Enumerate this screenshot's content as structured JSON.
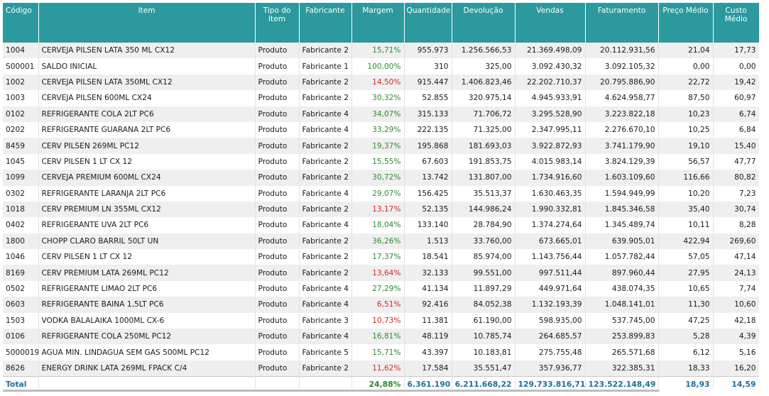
{
  "columns": [
    "Código",
    "Item",
    "Tipo do Item",
    "Fabricante",
    "Margem",
    "Quantidade",
    "Devolução",
    "Vendas",
    "Faturamento",
    "Preço Médio",
    "Custo Médio"
  ],
  "rows": [
    [
      "1004",
      "CERVEJA PILSEN LATA 350 ML CX12",
      "Produto",
      "Fabricante 2",
      "15,71%",
      "955.973",
      "1.256.566,53",
      "21.369.498,09",
      "20.112.931,56",
      "21,04",
      "17,73"
    ],
    [
      "S00001",
      "SALDO INICIAL",
      "Produto",
      "Fabricante 1",
      "100,00%",
      "310",
      "325,00",
      "3.092.430,32",
      "3.092.105,32",
      "0,00",
      "0,00"
    ],
    [
      "1002",
      "CERVEJA PILSEN LATA 350ML CX12",
      "Produto",
      "Fabricante 2",
      "14,50%",
      "915.447",
      "1.406.823,46",
      "22.202.710,37",
      "20.795.886,90",
      "22,72",
      "19,42"
    ],
    [
      "1003",
      "CERVEJA PILSEN 600ML CX24",
      "Produto",
      "Fabricante 2",
      "30,32%",
      "52.855",
      "320.975,14",
      "4.945.933,91",
      "4.624.958,77",
      "87,50",
      "60,97"
    ],
    [
      "0102",
      "REFRIGERANTE COLA 2LT PC6",
      "Produto",
      "Fabricante 4",
      "34,07%",
      "315.133",
      "71.706,72",
      "3.295.528,90",
      "3.223.822,18",
      "10,23",
      "6,74"
    ],
    [
      "0202",
      "REFRIGERANTE GUARANA 2LT PC6",
      "Produto",
      "Fabricante 4",
      "33,29%",
      "222.135",
      "71.325,00",
      "2.347.995,11",
      "2.276.670,10",
      "10,25",
      "6,84"
    ],
    [
      "8459",
      "CERV PILSEN 269ML PC12",
      "Produto",
      "Fabricante 2",
      "19,37%",
      "195.868",
      "181.693,03",
      "3.922.872,93",
      "3.741.179,90",
      "19,10",
      "15,40"
    ],
    [
      "1045",
      "CERV PILSEN 1 LT CX 12",
      "Produto",
      "Fabricante 2",
      "15,55%",
      "67.603",
      "191.853,75",
      "4.015.983,14",
      "3.824.129,39",
      "56,57",
      "47,77"
    ],
    [
      "1099",
      "CERVEJA PREMIUM 600ML CX24",
      "Produto",
      "Fabricante 2",
      "30,72%",
      "13.742",
      "131.807,00",
      "1.734.916,60",
      "1.603.109,60",
      "116,66",
      "80,82"
    ],
    [
      "0302",
      "REFRIGERANTE LARANJA 2LT PC6",
      "Produto",
      "Fabricante 4",
      "29,07%",
      "156.425",
      "35.513,37",
      "1.630.463,35",
      "1.594.949,99",
      "10,20",
      "7,23"
    ],
    [
      "1018",
      "CERV PREMIUM LN 355ML CX12",
      "Produto",
      "Fabricante 2",
      "13,17%",
      "52.135",
      "144.986,24",
      "1.990.332,81",
      "1.845.346,58",
      "35,40",
      "30,74"
    ],
    [
      "0402",
      "REFRIGERANTE UVA 2LT PC6",
      "Produto",
      "Fabricante 4",
      "18,04%",
      "133.140",
      "28.784,90",
      "1.374.274,64",
      "1.345.489,74",
      "10,11",
      "8,28"
    ],
    [
      "1800",
      "CHOPP CLARO BARRIL 50LT UN",
      "Produto",
      "Fabricante 2",
      "36,26%",
      "1.513",
      "33.760,00",
      "673.665,01",
      "639.905,01",
      "422,94",
      "269,60"
    ],
    [
      "1046",
      "CERV PILSEN 1 LT CX 12",
      "Produto",
      "Fabricante 2",
      "17,37%",
      "18.541",
      "85.974,00",
      "1.143.756,44",
      "1.057.782,44",
      "57,05",
      "47,14"
    ],
    [
      "8169",
      "CERV PREMIUM LATA 269ML PC12",
      "Produto",
      "Fabricante 2",
      "13,64%",
      "32.133",
      "99.551,00",
      "997.511,44",
      "897.960,44",
      "27,95",
      "24,13"
    ],
    [
      "0502",
      "REFRIGERANTE LIMAO 2LT PC6",
      "Produto",
      "Fabricante 4",
      "27,29%",
      "41.134",
      "11.897,29",
      "449.971,64",
      "438.074,35",
      "10,65",
      "7,74"
    ],
    [
      "0603",
      "REFRIGERANTE BAINA 1,5LT PC6",
      "Produto",
      "Fabricante 4",
      "6,51%",
      "92.416",
      "84.052,38",
      "1.132.193,39",
      "1.048.141,01",
      "11,30",
      "10,60"
    ],
    [
      "1503",
      "VODKA BALALAIKA 1000ML CX-6",
      "Produto",
      "Fabricante 3",
      "10,73%",
      "11.381",
      "61.190,00",
      "598.935,00",
      "537.745,00",
      "47,25",
      "42,18"
    ],
    [
      "0106",
      "REFRIGERANTE COLA 250ML PC12",
      "Produto",
      "Fabricante 4",
      "16,81%",
      "48.119",
      "10.785,74",
      "264.685,57",
      "253.899,83",
      "5,28",
      "4,39"
    ],
    [
      "5000019",
      "AGUA MIN. LINDAGUA SEM GAS 500ML PC12",
      "Produto",
      "Fabricante 5",
      "15,71%",
      "43.397",
      "10.183,81",
      "275.755,48",
      "265.571,68",
      "6,12",
      "5,16"
    ],
    [
      "8626",
      "ENERGY DRINK LATA 269ML FPACK C/4",
      "Produto",
      "Fabricante 2",
      "11,62%",
      "17.584",
      "35.551,47",
      "357.936,77",
      "322.385,31",
      "18,33",
      "16,20"
    ]
  ],
  "margin_colors": [
    "pos",
    "pos",
    "neg",
    "pos",
    "pos",
    "pos",
    "pos",
    "pos",
    "pos",
    "pos",
    "neg",
    "pos",
    "pos",
    "pos",
    "neg",
    "pos",
    "neg",
    "neg",
    "pos",
    "pos",
    "neg"
  ],
  "total": {
    "label": "Total",
    "margem": "24,88%",
    "quantidade": "6.361.190",
    "devolucao": "6.211.668,22",
    "vendas": "129.733.816,71",
    "faturamento": "123.522.148,49",
    "preco_medio": "18,93",
    "custo_medio": "14,59"
  },
  "colors": {
    "header_bg": "#2c999f",
    "positive": "#2e8b2e",
    "negative": "#d12c2c",
    "total_text": "#1a6f99"
  }
}
